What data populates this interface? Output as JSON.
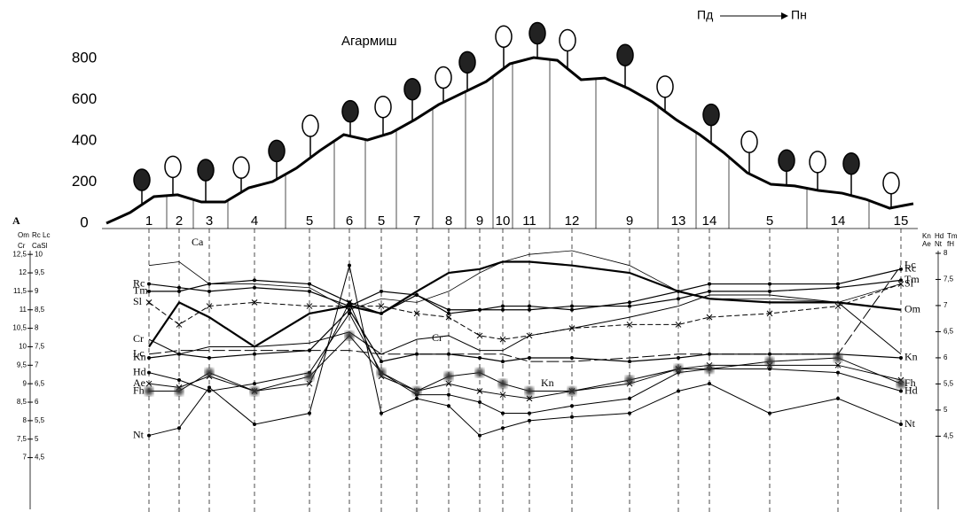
{
  "label": "A",
  "chart_data": [
    {
      "type": "area",
      "title": "Агармиш",
      "direction": [
        "Пд",
        "Пн"
      ],
      "values": [
        0,
        52,
        129,
        138,
        103,
        103,
        172,
        202,
        267,
        353,
        430,
        404,
        439,
        503,
        576,
        632,
        688,
        774,
        804,
        791,
        697,
        705,
        654,
        589,
        503,
        430,
        344,
        245,
        189,
        181,
        159,
        146,
        116,
        73,
        95
      ],
      "ylim": [
        0,
        800
      ],
      "yticks": [
        0,
        200,
        400,
        600,
        800
      ]
    },
    {
      "type": "line",
      "categories": [
        "1",
        "2",
        "3",
        "4",
        "5",
        "6",
        "5",
        "7",
        "8",
        "9",
        "10",
        "11",
        "12",
        "9",
        "13",
        "14",
        "5",
        "14",
        "15"
      ],
      "ylim": [
        5.6,
        12.6
      ],
      "yticks": [
        {
          "value": 12.5,
          "label": "12,5"
        },
        12,
        {
          "value": 11.5,
          "label": "11,5"
        },
        11,
        {
          "value": 10.5,
          "label": "10,5"
        },
        10,
        {
          "value": 9.5,
          "label": "9,5"
        },
        9,
        {
          "value": 8.5,
          "label": "8,5"
        },
        8,
        {
          "value": 7.5,
          "label": "7,5"
        },
        7
      ],
      "y_axis_labels": [
        "Om",
        "Cr"
      ],
      "y3lim": [
        3.1,
        10.1
      ],
      "y3ticks": [
        10,
        {
          "value": 9.5,
          "label": "9,5"
        },
        9,
        {
          "value": 8.5,
          "label": "8,5"
        },
        8,
        {
          "value": 7.5,
          "label": "7,5"
        },
        7,
        {
          "value": 6.5,
          "label": "6,5"
        },
        6,
        {
          "value": 5.5,
          "label": "5,5"
        },
        5,
        {
          "value": 4.5,
          "label": "4,5"
        }
      ],
      "y3_axis_labels": [
        "Rc Lc",
        "CaSl"
      ],
      "y2lim": [
        3.1,
        8.05
      ],
      "y2ticks": [
        8,
        {
          "value": 7.5,
          "label": "7,5"
        },
        7,
        {
          "value": 6.5,
          "label": "6,5"
        },
        6,
        {
          "value": 5.5,
          "label": "5,5"
        },
        5,
        {
          "value": 4.5,
          "label": "4,5"
        }
      ],
      "y2_axis_labels": [
        "Kn",
        "Hd",
        "Tm",
        "Ae",
        "Nt",
        "fH"
      ],
      "series": [
        {
          "name": "Om",
          "color": "#000",
          "width": 2.2,
          "dash": "",
          "marker": "",
          "values": [
            10.0,
            11.2,
            10.8,
            10.0,
            10.9,
            11.1,
            10.9,
            11.5,
            12.0,
            12.1,
            12.3,
            12.3,
            12.2,
            12.0,
            11.5,
            11.3,
            11.2,
            11.2,
            11.0
          ]
        },
        {
          "name": "Ca",
          "color": "#000",
          "width": 0.8,
          "dash": "",
          "marker": "",
          "values": [
            12.2,
            12.3,
            11.7,
            11.7,
            11.6,
            11.0,
            11.3,
            11.2,
            11.5,
            12.0,
            12.3,
            12.5,
            12.6,
            12.2,
            11.5,
            11.3,
            11.3,
            11.2,
            11.7
          ]
        },
        {
          "name": "Rc",
          "color": "#000",
          "width": 1.2,
          "dash": "",
          "marker": "dot",
          "values": [
            11.7,
            11.6,
            11.5,
            11.6,
            11.5,
            11.1,
            11.5,
            11.4,
            11.0,
            11.0,
            11.1,
            11.1,
            11.0,
            11.2,
            11.5,
            11.7,
            11.7,
            11.7,
            12.1
          ]
        },
        {
          "name": "Tm",
          "color": "#000",
          "width": 1.2,
          "dash": "",
          "marker": "dot",
          "values": [
            11.5,
            11.5,
            11.7,
            11.8,
            11.7,
            11.2,
            10.9,
            11.4,
            10.9,
            11.0,
            11.0,
            11.0,
            11.1,
            11.1,
            11.3,
            11.5,
            11.5,
            11.6,
            11.8
          ]
        },
        {
          "name": "Sl",
          "color": "#000",
          "width": 1,
          "dash": "6 3",
          "marker": "cross",
          "values": [
            11.2,
            10.6,
            11.1,
            11.2,
            11.1,
            11.1,
            11.1,
            10.9,
            10.8,
            10.3,
            10.2,
            10.3,
            10.5,
            10.6,
            10.6,
            10.8,
            10.9,
            11.1,
            11.7
          ]
        },
        {
          "name": "Cr",
          "color": "#000",
          "width": 1,
          "dash": "",
          "marker": "",
          "values": [
            10.2,
            9.8,
            10.0,
            10.0,
            10.1,
            10.4,
            9.8,
            10.2,
            10.3,
            9.9,
            9.9,
            10.3,
            10.5,
            10.8,
            11.1,
            11.4,
            11.4,
            11.2,
            9.8
          ]
        },
        {
          "name": "Lc",
          "color": "#000",
          "width": 1,
          "dash": "14 4",
          "marker": "",
          "values": [
            9.8,
            9.9,
            9.9,
            9.9,
            9.9,
            9.9,
            9.8,
            9.8,
            9.8,
            9.8,
            9.8,
            9.6,
            9.6,
            9.7,
            9.8,
            9.8,
            9.8,
            9.8,
            12.2
          ]
        },
        {
          "name": "Kn",
          "color": "#000",
          "width": 1.2,
          "dash": "",
          "marker": "dot",
          "values": [
            9.7,
            9.8,
            9.7,
            9.8,
            9.9,
            11.0,
            9.6,
            9.8,
            9.8,
            9.7,
            9.6,
            9.7,
            9.7,
            9.6,
            9.7,
            9.8,
            9.8,
            9.8,
            9.7
          ]
        },
        {
          "name": "Hd",
          "color": "#000",
          "width": 1,
          "dash": "",
          "marker": "dot",
          "values": [
            9.3,
            9.1,
            8.8,
            9.0,
            9.3,
            10.9,
            9.3,
            8.7,
            8.7,
            8.5,
            8.2,
            8.2,
            8.4,
            8.6,
            9.3,
            9.4,
            9.4,
            9.3,
            8.8
          ]
        },
        {
          "name": "Ae",
          "color": "#000",
          "width": 1,
          "dash": "",
          "marker": "cross",
          "values": [
            9.0,
            8.9,
            9.2,
            8.8,
            9.0,
            11.2,
            9.2,
            8.8,
            9.0,
            8.8,
            8.7,
            8.6,
            8.8,
            9.0,
            9.4,
            9.5,
            9.5,
            9.5,
            9.1
          ]
        },
        {
          "name": "Fh",
          "color": "#000",
          "width": 1,
          "dash": "",
          "marker": "blur",
          "values": [
            8.8,
            8.8,
            9.3,
            8.8,
            9.2,
            10.3,
            9.3,
            8.8,
            9.2,
            9.3,
            9.0,
            8.8,
            8.8,
            9.1,
            9.4,
            9.4,
            9.6,
            9.7,
            9.0
          ]
        },
        {
          "name": "Nt",
          "color": "#000",
          "width": 1,
          "dash": "",
          "marker": "dot",
          "values": [
            7.6,
            7.8,
            8.9,
            7.9,
            8.2,
            12.2,
            8.2,
            8.6,
            8.4,
            7.6,
            7.8,
            8.0,
            8.1,
            8.2,
            8.8,
            9.0,
            8.2,
            8.6,
            7.9
          ]
        }
      ]
    }
  ]
}
